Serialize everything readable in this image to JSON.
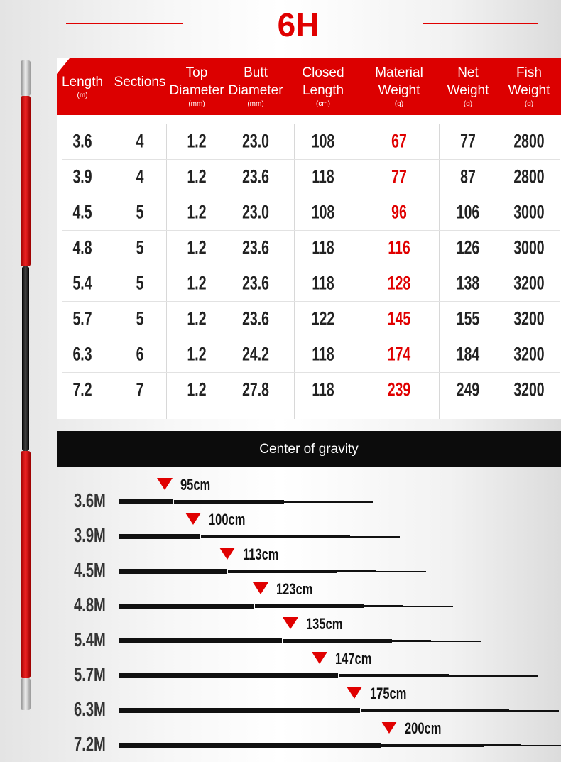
{
  "title": "6H",
  "colors": {
    "accent": "#e00000",
    "header_bg": "#dc0000",
    "bar_bg": "#0c0c0c"
  },
  "table": {
    "headers": [
      {
        "top": "",
        "main": "Length",
        "unit": "(m)"
      },
      {
        "top": "",
        "main": "Sections",
        "unit": ""
      },
      {
        "top": "Top",
        "main": "Diameter",
        "unit": "(mm)"
      },
      {
        "top": "Butt",
        "main": "Diameter",
        "unit": "(mm)"
      },
      {
        "top": "Closed",
        "main": "Length",
        "unit": "(cm)"
      },
      {
        "top": "Material",
        "main": "Weight",
        "unit": "(g)"
      },
      {
        "top": "Net",
        "main": "Weight",
        "unit": "(g)"
      },
      {
        "top": "Fish",
        "main": "Weight",
        "unit": "(g)"
      }
    ],
    "rows": [
      [
        "3.6",
        "4",
        "1.2",
        "23.0",
        "108",
        "67",
        "77",
        "2800"
      ],
      [
        "3.9",
        "4",
        "1.2",
        "23.6",
        "118",
        "77",
        "87",
        "2800"
      ],
      [
        "4.5",
        "5",
        "1.2",
        "23.0",
        "108",
        "96",
        "106",
        "3000"
      ],
      [
        "4.8",
        "5",
        "1.2",
        "23.6",
        "118",
        "116",
        "126",
        "3000"
      ],
      [
        "5.4",
        "5",
        "1.2",
        "23.6",
        "118",
        "128",
        "138",
        "3200"
      ],
      [
        "5.7",
        "5",
        "1.2",
        "23.6",
        "122",
        "145",
        "155",
        "3200"
      ],
      [
        "6.3",
        "6",
        "1.2",
        "24.2",
        "118",
        "174",
        "184",
        "3200"
      ],
      [
        "7.2",
        "7",
        "1.2",
        "27.8",
        "118",
        "239",
        "249",
        "3200"
      ]
    ]
  },
  "gravity": {
    "title": "Center of gravity",
    "rows": [
      {
        "length": "3.6M",
        "cg": "95cm"
      },
      {
        "length": "3.9M",
        "cg": "100cm"
      },
      {
        "length": "4.5M",
        "cg": "113cm"
      },
      {
        "length": "4.8M",
        "cg": "123cm"
      },
      {
        "length": "5.4M",
        "cg": "135cm"
      },
      {
        "length": "5.7M",
        "cg": "147cm"
      },
      {
        "length": "6.3M",
        "cg": "175cm"
      },
      {
        "length": "7.2M",
        "cg": "200cm"
      }
    ]
  }
}
